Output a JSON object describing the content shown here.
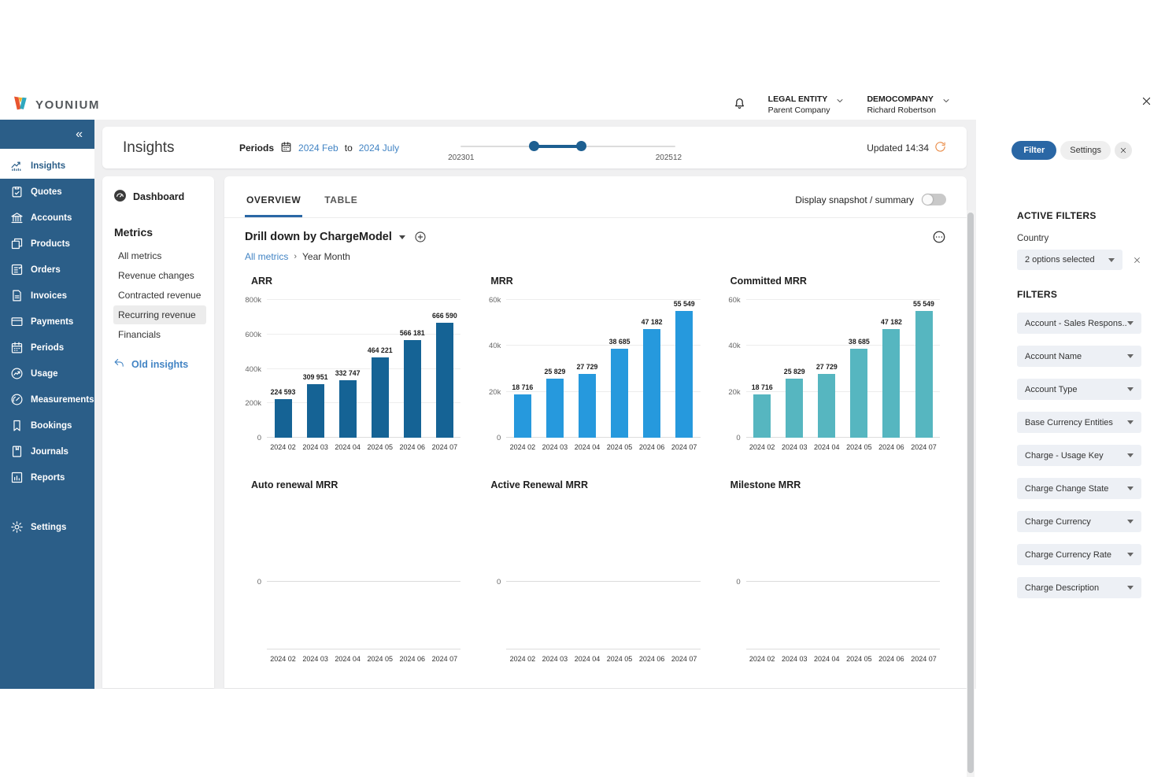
{
  "window": {
    "close_icon": "close-icon"
  },
  "header": {
    "logo_text": "YOUNIUM",
    "logo_icon": "younium-logo-icon",
    "bell_icon": "bell-icon",
    "legal_entity_label": "LEGAL ENTITY",
    "legal_entity_value": "Parent Company",
    "company_label": "DEMOCOMPANY",
    "company_user": "Richard Robertson"
  },
  "sidebar": {
    "collapse_icon": "«",
    "items": [
      {
        "label": "Insights",
        "icon": "chart-line-icon",
        "active": true
      },
      {
        "label": "Quotes",
        "icon": "clipboard-icon"
      },
      {
        "label": "Accounts",
        "icon": "bank-icon"
      },
      {
        "label": "Products",
        "icon": "box-icon"
      },
      {
        "label": "Orders",
        "icon": "list-check-icon"
      },
      {
        "label": "Invoices",
        "icon": "document-icon"
      },
      {
        "label": "Payments",
        "icon": "credit-card-icon"
      },
      {
        "label": "Periods",
        "icon": "calendar-icon"
      },
      {
        "label": "Usage",
        "icon": "trend-circle-icon"
      },
      {
        "label": "Measurements",
        "icon": "gauge-icon"
      },
      {
        "label": "Bookings",
        "icon": "bookmark-icon"
      },
      {
        "label": "Journals",
        "icon": "journal-icon"
      },
      {
        "label": "Reports",
        "icon": "bar-chart-icon"
      }
    ],
    "settings": {
      "label": "Settings",
      "icon": "gear-icon"
    }
  },
  "insights_bar": {
    "title": "Insights",
    "periods_label": "Periods",
    "calendar_icon": "calendar-icon",
    "period_from": "2024 Feb",
    "period_to_word": "to",
    "period_to": "2024 July",
    "slider_min_label": "202301",
    "slider_max_label": "202512",
    "updated_label": "Updated 14:34",
    "refresh_icon": "refresh-icon"
  },
  "metrics_panel": {
    "dashboard_label": "Dashboard",
    "dashboard_icon": "dashboard-gauge-icon",
    "metrics_title": "Metrics",
    "items": [
      {
        "label": "All metrics"
      },
      {
        "label": "Revenue changes"
      },
      {
        "label": "Contracted revenue"
      },
      {
        "label": "Recurring revenue",
        "selected": true
      },
      {
        "label": "Financials"
      }
    ],
    "old_insights_label": "Old insights",
    "old_insights_icon": "reply-arrow-icon"
  },
  "main": {
    "tabs": [
      {
        "label": "OVERVIEW",
        "active": true
      },
      {
        "label": "TABLE"
      }
    ],
    "snapshot_toggle_label": "Display snapshot / summary",
    "snapshot_toggle_state": "off",
    "drilldown_label": "Drill down by ChargeModel",
    "drilldown_icons": [
      "chevron-down-icon",
      "plus-circle-icon"
    ],
    "more_icon": "ellipsis-circle-icon",
    "breadcrumb": {
      "parent": "All metrics",
      "separator": "›",
      "current": "Year Month"
    }
  },
  "filter_panel": {
    "filter_button_label": "Filter",
    "settings_button_label": "Settings",
    "close_circle_icon": "close-icon",
    "active_filters_title": "ACTIVE FILTERS",
    "country_label": "Country",
    "country_value": "2 options selected",
    "country_clear_icon": "close-icon",
    "filters_title": "FILTERS",
    "filters": [
      "Account - Sales Respons...",
      "Account Name",
      "Account Type",
      "Base Currency Entities",
      "Charge - Usage Key",
      "Charge Change State",
      "Charge Currency",
      "Charge Currency Rate",
      "Charge Description"
    ]
  },
  "colors": {
    "sidebar_bg": "#2b5e88",
    "arr_bar": "#156395",
    "mrr_bar": "#2699dd",
    "committed_mrr_bar": "#56b6c0",
    "accent_blue": "#2a67a5",
    "link_blue": "#4284c4",
    "refresh_orange": "#e8833a"
  },
  "chart_data": [
    {
      "type": "bar",
      "title": "ARR",
      "color": "#156395",
      "categories": [
        "2024 02",
        "2024 03",
        "2024 04",
        "2024 05",
        "2024 06",
        "2024 07"
      ],
      "values": [
        224593,
        309951,
        332747,
        464221,
        566181,
        666590
      ],
      "value_labels": [
        "224 593",
        "309 951",
        "332 747",
        "464 221",
        "566 181",
        "666 590"
      ],
      "ylim": [
        0,
        800000
      ],
      "yticks": [
        "0",
        "200k",
        "400k",
        "600k",
        "800k"
      ],
      "grid": true,
      "legend": "none"
    },
    {
      "type": "bar",
      "title": "MRR",
      "color": "#2699dd",
      "categories": [
        "2024 02",
        "2024 03",
        "2024 04",
        "2024 05",
        "2024 06",
        "2024 07"
      ],
      "values": [
        18716,
        25829,
        27729,
        38685,
        47182,
        55549
      ],
      "value_labels": [
        "18 716",
        "25 829",
        "27 729",
        "38 685",
        "47 182",
        "55 549"
      ],
      "ylim": [
        0,
        60000
      ],
      "yticks": [
        "0",
        "20k",
        "40k",
        "60k"
      ],
      "grid": true,
      "legend": "none"
    },
    {
      "type": "bar",
      "title": "Committed MRR",
      "color": "#56b6c0",
      "categories": [
        "2024 02",
        "2024 03",
        "2024 04",
        "2024 05",
        "2024 06",
        "2024 07"
      ],
      "values": [
        18716,
        25829,
        27729,
        38685,
        47182,
        55549
      ],
      "value_labels": [
        "18 716",
        "25 829",
        "27 729",
        "38 685",
        "47 182",
        "55 549"
      ],
      "ylim": [
        0,
        60000
      ],
      "yticks": [
        "0",
        "20k",
        "40k",
        "60k"
      ],
      "grid": true,
      "legend": "none"
    },
    {
      "type": "bar",
      "title": "Auto renewal MRR",
      "color": "#156395",
      "categories": [
        "2024 02",
        "2024 03",
        "2024 04",
        "2024 05",
        "2024 06",
        "2024 07"
      ],
      "values": [],
      "value_labels": [],
      "ylim": [
        0,
        0
      ],
      "yticks": [
        "0"
      ],
      "grid": true,
      "legend": "none"
    },
    {
      "type": "bar",
      "title": "Active Renewal MRR",
      "color": "#2699dd",
      "categories": [
        "2024 02",
        "2024 03",
        "2024 04",
        "2024 05",
        "2024 06",
        "2024 07"
      ],
      "values": [],
      "value_labels": [],
      "ylim": [
        0,
        0
      ],
      "yticks": [
        "0"
      ],
      "grid": true,
      "legend": "none"
    },
    {
      "type": "bar",
      "title": "Milestone MRR",
      "color": "#56b6c0",
      "categories": [
        "2024 02",
        "2024 03",
        "2024 04",
        "2024 05",
        "2024 06",
        "2024 07"
      ],
      "values": [],
      "value_labels": [],
      "ylim": [
        0,
        0
      ],
      "yticks": [
        "0"
      ],
      "grid": true,
      "legend": "none"
    }
  ]
}
